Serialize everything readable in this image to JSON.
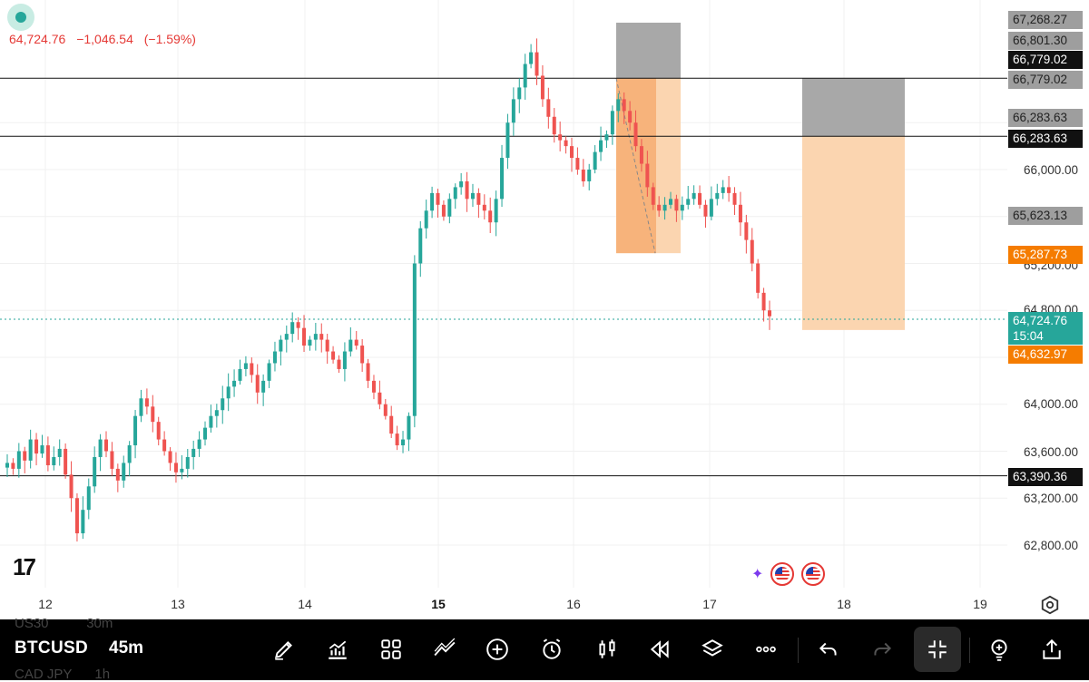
{
  "header": {
    "price": "64,724.76",
    "change": "−1,046.54",
    "change_pct": "(−1.59%)"
  },
  "axis": {
    "y_ticks": [
      "66,000.00",
      "64,000.00",
      "63,600.00",
      "63,200.00",
      "62,800.00"
    ],
    "y_ticks_partial": [
      "65,200.00",
      "64,800.00"
    ],
    "x_ticks": [
      "12",
      "13",
      "14",
      "15",
      "16",
      "17",
      "18",
      "19"
    ]
  },
  "price_labels": {
    "p67268": "67,268.27",
    "p66801": "66,801.30",
    "p66779a": "66,779.02",
    "p66779b": "66,779.02",
    "p66283a": "66,283.63",
    "p66283b": "66,283.63",
    "p65623": "65,623.13",
    "p65287": "65,287.73",
    "current_price": "64,724.76",
    "countdown": "15:04",
    "p64632": "64,632.97",
    "p63390": "63,390.36"
  },
  "chart_data": {
    "type": "candlestick",
    "symbol": "BTCUSD",
    "interval": "45m",
    "x_axis_days": [
      "12",
      "13",
      "14",
      "15",
      "16",
      "17",
      "18",
      "19"
    ],
    "y_range": [
      62600,
      67400
    ],
    "horizontal_lines": [
      66779.02,
      66283.63,
      63390.36
    ],
    "current_price": 64724.76,
    "positions": [
      {
        "type": "short",
        "entry": 66283.63,
        "stop": 66779.02,
        "target": 65287.73
      },
      {
        "type": "short",
        "entry": 66283.63,
        "stop": 66779.02,
        "target": 64632.97
      }
    ],
    "close_path": [
      63500,
      63450,
      63600,
      63520,
      63700,
      63580,
      63650,
      63480,
      63550,
      63620,
      63400,
      63200,
      62900,
      63100,
      63300,
      63550,
      63700,
      63600,
      63450,
      63350,
      63500,
      63650,
      63900,
      64050,
      63980,
      63850,
      63700,
      63600,
      63500,
      63420,
      63450,
      63550,
      63620,
      63700,
      63800,
      63900,
      63950,
      64050,
      64150,
      64200,
      64300,
      64350,
      64250,
      64100,
      64200,
      64350,
      64450,
      64550,
      64600,
      64700,
      64650,
      64500,
      64550,
      64600,
      64550,
      64450,
      64380,
      64300,
      64450,
      64550,
      64500,
      64350,
      64200,
      64100,
      64000,
      63900,
      63750,
      63650,
      63700,
      63900,
      65200,
      65500,
      65650,
      65800,
      65700,
      65600,
      65750,
      65850,
      65900,
      65750,
      65800,
      65700,
      65650,
      65550,
      65750,
      66100,
      66400,
      66600,
      66700,
      66900,
      67000,
      66800,
      66600,
      66450,
      66300,
      66250,
      66200,
      66100,
      66000,
      65900,
      66000,
      66150,
      66250,
      66300,
      66500,
      66600,
      66500,
      66400,
      66200,
      66050,
      65850,
      65700,
      65650,
      65700,
      65750,
      65650,
      65700,
      65750,
      65800,
      65700,
      65600,
      65750,
      65800,
      65850,
      65800,
      65700,
      65550,
      65400,
      65200,
      64950,
      64800,
      64750
    ]
  },
  "flags": {
    "icons": [
      "sparkle-icon",
      "us-flag-icon",
      "us-flag-icon"
    ]
  },
  "toolbar": {
    "symbol": "BTCUSD",
    "interval": "45m",
    "ghost_symbol_above": "US30",
    "ghost_interval_above": "30m",
    "ghost_symbol_below": "CAD JPY",
    "ghost_interval_below": "1h",
    "buttons": [
      "pencil-icon",
      "indicators-icon",
      "layouts-icon",
      "drawing-trend-icon",
      "add-icon",
      "alert-icon",
      "bar-style-icon",
      "replay-icon",
      "layers-icon",
      "more-icon",
      "undo-icon",
      "redo-icon",
      "exit-fullscreen-icon",
      "lightbulb-icon",
      "share-icon"
    ]
  },
  "colors": {
    "up": "#26a69a",
    "down": "#ef5350",
    "stop_zone": "#a8a8a8",
    "target_zone": "#fbd5b0",
    "target_zone_active": "#f5a76a"
  }
}
